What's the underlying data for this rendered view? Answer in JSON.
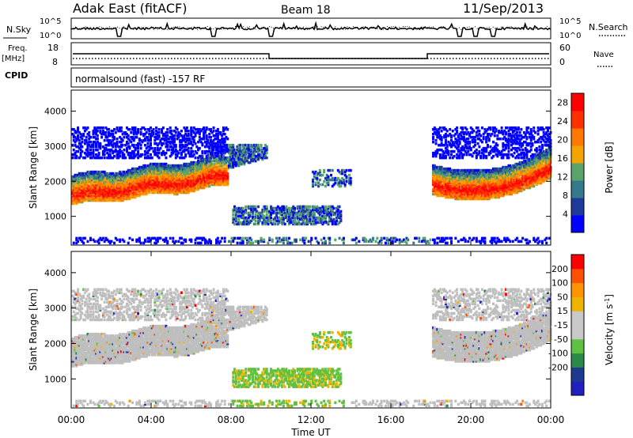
{
  "header": {
    "radar": "Adak East (fitACF)",
    "beam": "Beam 18",
    "date": "11/Sep/2013"
  },
  "status": {
    "nsky_label": "N.Sky",
    "nsearch_label": "N.Search",
    "freq_label": "Freq.",
    "freq_unit": "[MHz]",
    "nave_label": "Nave",
    "cpid_label": "CPID",
    "cpid_text": "normalsound (fast) -157 RF",
    "noise_ticks_left": [
      "10^5",
      "10^0"
    ],
    "noise_ticks_right": [
      "10^5",
      "10^0"
    ],
    "freq_ticks": [
      "18",
      "8"
    ],
    "nave_ticks": [
      "60",
      "0"
    ]
  },
  "colors": {
    "power_scale": [
      "#0000ff",
      "#203a9a",
      "#357a8a",
      "#5aa36a",
      "#f4a300",
      "#ff7800",
      "#ff3000",
      "#ff0000"
    ],
    "velocity_scale": [
      "#ff0000",
      "#ff5000",
      "#ff9400",
      "#f0b400",
      "#c8c8c8",
      "#c8c8c8",
      "#60c040",
      "#2a8a4a",
      "#1e3a90",
      "#2020c0"
    ],
    "ground_scatter": "#bebebe"
  },
  "chart_data": [
    {
      "type": "heatmap",
      "title": "",
      "xlabel": "",
      "ylabel": "Slant Range [km]",
      "xlim": [
        "00:00",
        "24:00"
      ],
      "ylim": [
        180,
        4600
      ],
      "yticks": [
        "1000",
        "2000",
        "3000",
        "4000"
      ],
      "colorbar": {
        "label": "Power [dB]",
        "ticks": [
          "4",
          "8",
          "12",
          "16",
          "20",
          "24",
          "28"
        ],
        "range": [
          0,
          30
        ]
      },
      "features": [
        {
          "description": "main band",
          "start": "00:00",
          "end": "07:45",
          "range_km": [
            1400,
            2100
          ]
        },
        {
          "description": "rising arc",
          "start": "07:00",
          "end": "09:45",
          "range_km": [
            2200,
            3000
          ]
        },
        {
          "description": "low patch",
          "start": "08:00",
          "end": "13:30",
          "range_km": [
            700,
            1200
          ]
        },
        {
          "description": "evening band",
          "start": "18:00",
          "end": "24:00",
          "range_km": [
            1500,
            2300
          ]
        }
      ]
    },
    {
      "type": "heatmap",
      "title": "",
      "xlabel": "Time UT",
      "ylabel": "Slant Range [km]",
      "xlim": [
        "00:00",
        "24:00"
      ],
      "ylim": [
        180,
        4600
      ],
      "xticks": [
        "00:00",
        "04:00",
        "08:00",
        "12:00",
        "16:00",
        "20:00",
        "00:00"
      ],
      "yticks": [
        "1000",
        "2000",
        "3000",
        "4000"
      ],
      "colorbar": {
        "label": "Velocity [m s",
        "label_sup": "-1",
        "label_end": "]",
        "ticks": [
          "200",
          "100",
          "50",
          "15",
          "-15",
          "-50",
          "-100",
          "-200"
        ],
        "range": [
          -250,
          250
        ]
      }
    }
  ]
}
